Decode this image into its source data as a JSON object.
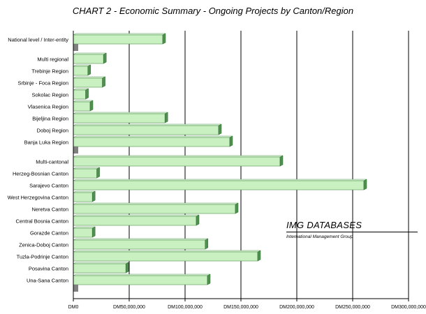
{
  "chart_data": {
    "type": "bar",
    "orientation": "horizontal",
    "title": "CHART 2 - Economic Summary - Ongoing Projects by Canton/Region",
    "xlabel": "",
    "ylabel": "",
    "xlim": [
      0,
      300000000
    ],
    "x_ticks": [
      "DM0",
      "DM50,000,000",
      "DM100,000,000",
      "DM150,000,000",
      "DM200,000,000",
      "DM250,000,000",
      "DM300,000,000"
    ],
    "x_tick_values": [
      0,
      50000000,
      100000000,
      150000000,
      200000000,
      250000000,
      300000000
    ],
    "grid": "vertical",
    "bar_color": "#c8f0c0",
    "bar_edge_color": "#4f8f4f",
    "separator_color": "#808080",
    "groups": [
      {
        "bars": [
          {
            "label": "National level / Inter-entity",
            "value": 80000000
          }
        ]
      },
      {
        "bars": [
          {
            "label": "Multi regional",
            "value": 27000000
          },
          {
            "label": "Trebinje Region",
            "value": 13000000
          },
          {
            "label": "Srbinje - Foca Region",
            "value": 26000000
          },
          {
            "label": "Sokolac Region",
            "value": 11000000
          },
          {
            "label": "Vlasenica Region",
            "value": 15000000
          },
          {
            "label": "Bijeljina Region",
            "value": 82000000
          },
          {
            "label": "Doboj Region",
            "value": 130000000
          },
          {
            "label": "Banja Luka Region",
            "value": 140000000
          }
        ]
      },
      {
        "bars": [
          {
            "label": "Multi-cantonal",
            "value": 185000000
          },
          {
            "label": "Herzeg-Bosnian Canton",
            "value": 21000000
          },
          {
            "label": "Sarajevo Canton",
            "value": 260000000
          },
          {
            "label": "West Herzegovina Canton",
            "value": 17000000
          },
          {
            "label": "Neretva Canton",
            "value": 145000000
          },
          {
            "label": "Central Bosnia Canton",
            "value": 110000000
          },
          {
            "label": "Gorazde Canton",
            "value": 17000000
          },
          {
            "label": "Zenica-Doboj Canton",
            "value": 118000000
          },
          {
            "label": "Tuzla-Podrinje Canton",
            "value": 165000000
          },
          {
            "label": "Posavina Canton",
            "value": 47000000
          },
          {
            "label": "Una-Sana Canton",
            "value": 120000000
          }
        ]
      }
    ]
  },
  "watermark": {
    "title": "IMG DATABASES",
    "subtitle": "International Management Group"
  }
}
